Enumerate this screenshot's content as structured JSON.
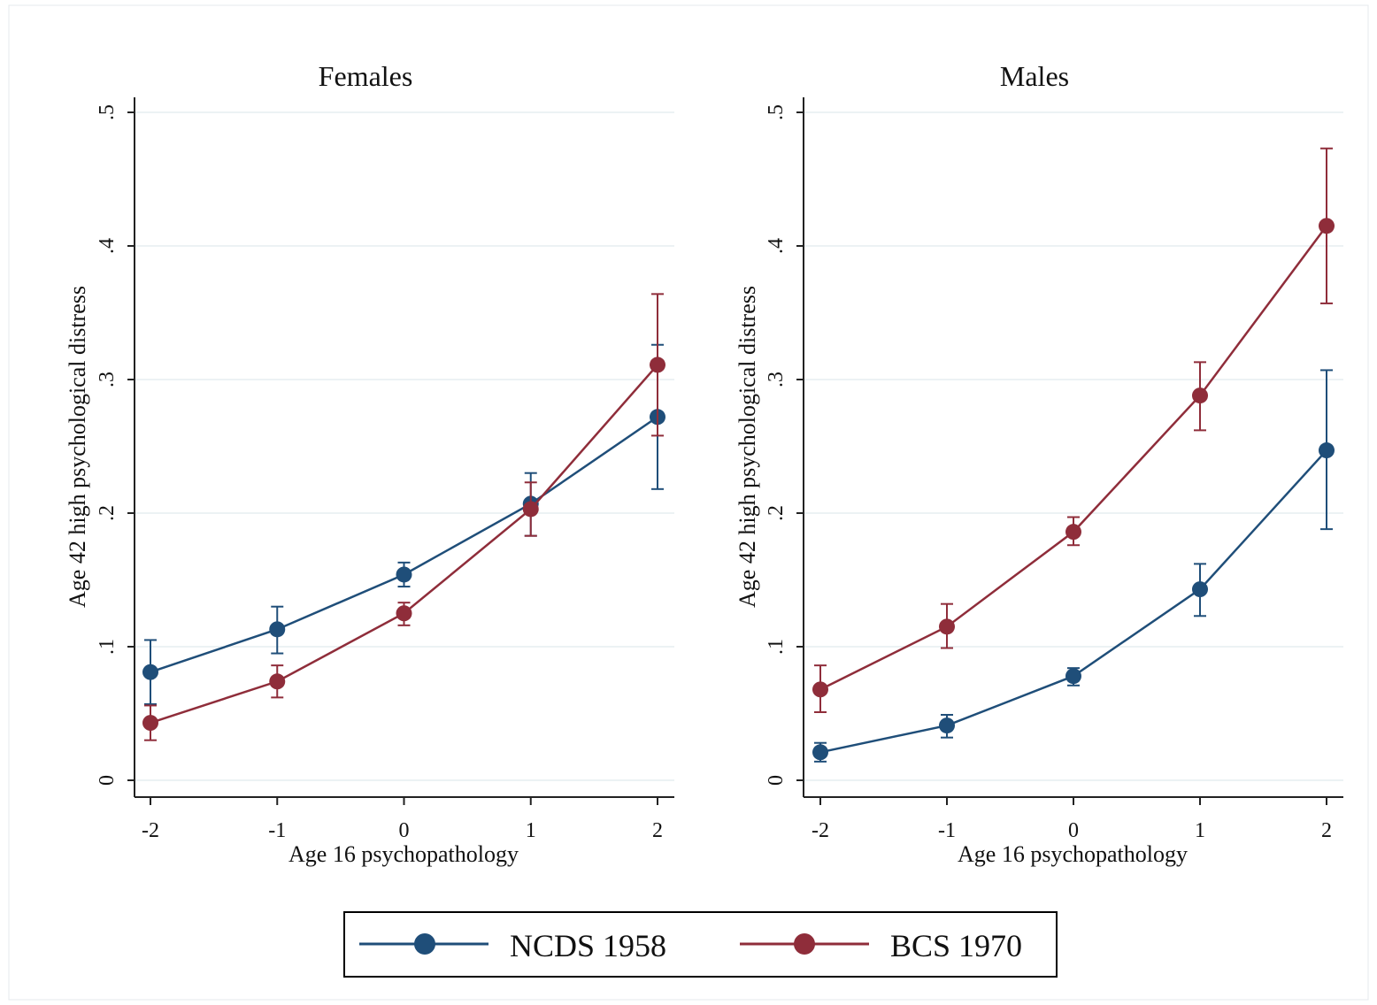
{
  "chart_data": [
    {
      "type": "line",
      "title": "Females",
      "xlabel": "Age 16 psychopathology",
      "ylabel": "Age 42 high psychological distress",
      "x": [
        -2,
        -1,
        0,
        1,
        2
      ],
      "x_tick_labels": [
        "-2",
        "-1",
        "0",
        "1",
        "2"
      ],
      "y_ticks": [
        0,
        0.1,
        0.2,
        0.3,
        0.4,
        0.5
      ],
      "y_tick_labels": [
        "0",
        ".1",
        ".2",
        ".3",
        ".4",
        ".5"
      ],
      "xlim": [
        -2,
        2
      ],
      "ylim": [
        0,
        0.5
      ],
      "grid": true,
      "series": [
        {
          "name": "NCDS 1958",
          "color": "#1f4e79",
          "values": [
            0.081,
            0.113,
            0.154,
            0.207,
            0.272
          ],
          "ci_low": [
            0.057,
            0.095,
            0.145,
            0.183,
            0.218
          ],
          "ci_high": [
            0.105,
            0.13,
            0.163,
            0.23,
            0.326
          ]
        },
        {
          "name": "BCS 1970",
          "color": "#8f2d3a",
          "values": [
            0.043,
            0.074,
            0.125,
            0.203,
            0.311
          ],
          "ci_low": [
            0.03,
            0.062,
            0.116,
            0.183,
            0.258
          ],
          "ci_high": [
            0.056,
            0.086,
            0.133,
            0.223,
            0.364
          ]
        }
      ]
    },
    {
      "type": "line",
      "title": "Males",
      "xlabel": "Age 16 psychopathology",
      "ylabel": "Age 42 high psychological distress",
      "x": [
        -2,
        -1,
        0,
        1,
        2
      ],
      "x_tick_labels": [
        "-2",
        "-1",
        "0",
        "1",
        "2"
      ],
      "y_ticks": [
        0,
        0.1,
        0.2,
        0.3,
        0.4,
        0.5
      ],
      "y_tick_labels": [
        "0",
        ".1",
        ".2",
        ".3",
        ".4",
        ".5"
      ],
      "xlim": [
        -2,
        2
      ],
      "ylim": [
        0,
        0.5
      ],
      "grid": true,
      "series": [
        {
          "name": "NCDS 1958",
          "color": "#1f4e79",
          "values": [
            0.021,
            0.041,
            0.078,
            0.143,
            0.247
          ],
          "ci_low": [
            0.014,
            0.032,
            0.071,
            0.123,
            0.188
          ],
          "ci_high": [
            0.028,
            0.049,
            0.084,
            0.162,
            0.307
          ]
        },
        {
          "name": "BCS 1970",
          "color": "#8f2d3a",
          "values": [
            0.068,
            0.115,
            0.186,
            0.288,
            0.415
          ],
          "ci_low": [
            0.051,
            0.099,
            0.176,
            0.262,
            0.357
          ],
          "ci_high": [
            0.086,
            0.132,
            0.197,
            0.313,
            0.473
          ]
        }
      ]
    }
  ],
  "legend": {
    "position": "bottom",
    "items": [
      {
        "label": "NCDS 1958",
        "color": "#1f4e79"
      },
      {
        "label": "BCS 1970",
        "color": "#8f2d3a"
      }
    ]
  }
}
